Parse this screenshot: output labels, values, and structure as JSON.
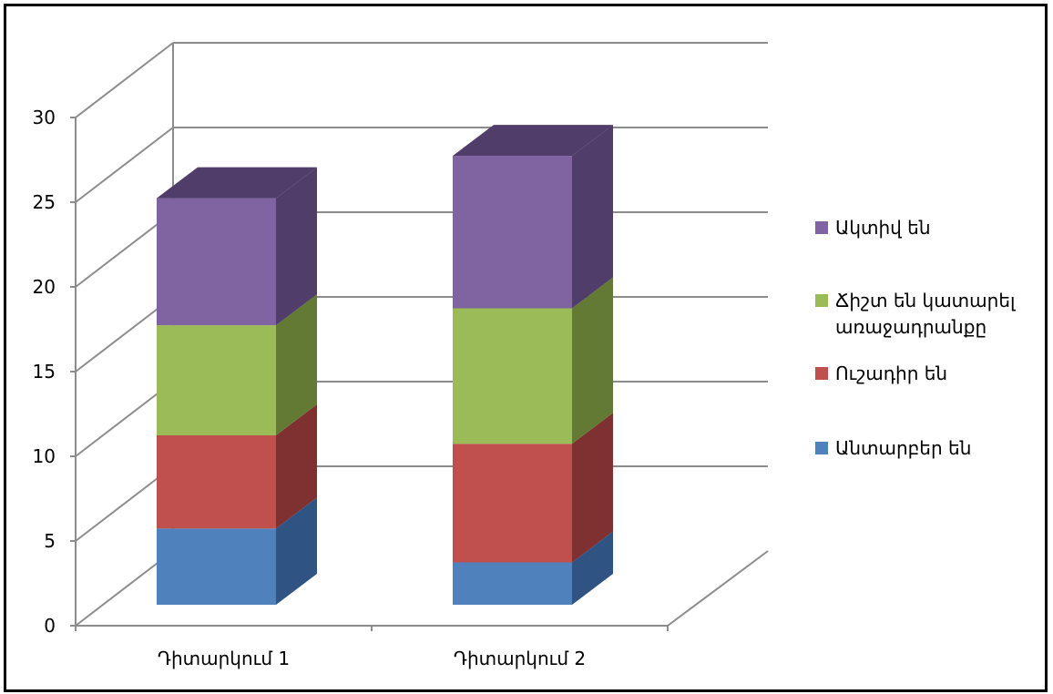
{
  "chart_data": {
    "type": "bar",
    "subtype": "stacked-3d",
    "categories": [
      "Դիտարկում 1",
      "Դիտարկում 2"
    ],
    "series": [
      {
        "name": "Անտարբեր են",
        "color": "#4F81BD",
        "side_color": "#2F5383",
        "values": [
          4.5,
          2.5
        ]
      },
      {
        "name": "Ուշադիր են",
        "color": "#C0504D",
        "side_color": "#7F3030",
        "values": [
          5.5,
          7.0
        ]
      },
      {
        "name": "Ճիշտ են կատարել առաջադրանքը",
        "color": "#9BBB59",
        "side_color": "#637A35",
        "values": [
          6.5,
          8.0
        ]
      },
      {
        "name": "Ակտիվ են",
        "color": "#8064A2",
        "side_color": "#503D6A",
        "values": [
          7.5,
          9.0
        ]
      }
    ],
    "ylim": [
      0,
      30
    ],
    "yticks": [
      0,
      5,
      10,
      15,
      20,
      25,
      30
    ],
    "grid": true,
    "legend_position": "right"
  }
}
